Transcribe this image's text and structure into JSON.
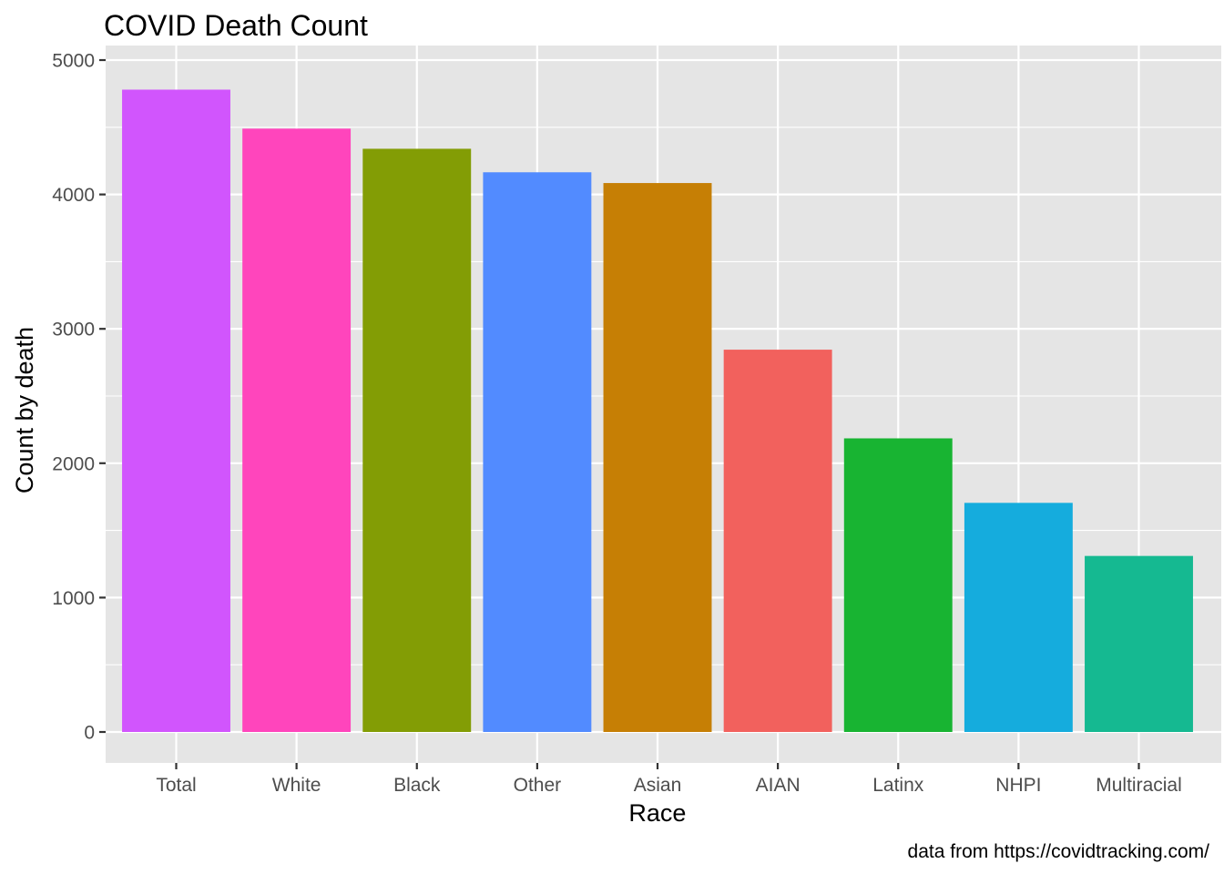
{
  "chart_data": {
    "type": "bar",
    "title": "COVID Death Count",
    "xlabel": "Race",
    "ylabel": "Count by death",
    "caption": "data from https://covidtracking.com/",
    "categories": [
      "Total",
      "White",
      "Black",
      "Other",
      "Asian",
      "AIAN",
      "Latinx",
      "NHPI",
      "Multiracial"
    ],
    "values": [
      4780,
      4490,
      4340,
      4165,
      4085,
      2845,
      2185,
      1705,
      1310
    ],
    "colors": [
      "#D155FD",
      "#FF45BC",
      "#839D05",
      "#528BFF",
      "#C67F05",
      "#F2615D",
      "#18B432",
      "#15ACDD",
      "#15B991"
    ],
    "ylim": [
      0,
      5000
    ],
    "y_ticks": [
      0,
      1000,
      2000,
      3000,
      4000,
      5000
    ],
    "y_tick_labels": [
      "0",
      "1000",
      "2000",
      "3000",
      "4000",
      "5000"
    ],
    "grid": true,
    "legend": "none",
    "panel_background": "#E5E5E5",
    "grid_color": "#FFFFFF"
  }
}
